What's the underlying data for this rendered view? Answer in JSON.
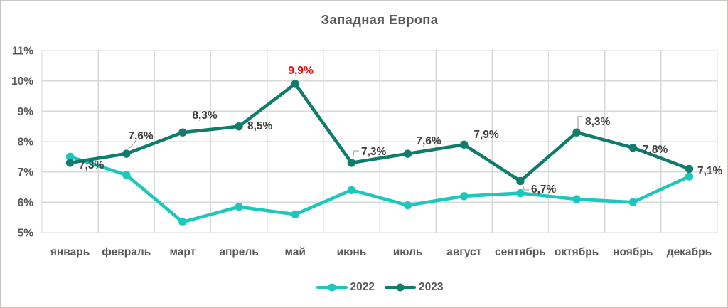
{
  "title": "Западная Европа",
  "chart_data": {
    "type": "line",
    "categories": [
      "январь",
      "февраль",
      "март",
      "апрель",
      "май",
      "июнь",
      "июль",
      "август",
      "сентябрь",
      "октябрь",
      "ноябрь",
      "декабрь"
    ],
    "series": [
      {
        "name": "2022",
        "color": "#1ec7bb",
        "values": [
          7.5,
          6.9,
          5.35,
          5.85,
          5.6,
          6.4,
          5.9,
          6.2,
          6.3,
          6.1,
          6.0,
          6.85
        ],
        "data_labels": []
      },
      {
        "name": "2023",
        "color": "#0e7d6c",
        "values": [
          7.3,
          7.6,
          8.3,
          8.5,
          9.9,
          7.3,
          7.6,
          7.9,
          6.7,
          8.3,
          7.8,
          7.1
        ],
        "data_labels": [
          "7,3%",
          "7,6%",
          "8,3%",
          "8,5%",
          "9,9%",
          "7,3%",
          "7,6%",
          "7,9%",
          "6,7%",
          "8,3%",
          "7,8%",
          "7,1%"
        ]
      }
    ],
    "ylim": [
      5,
      11
    ],
    "y_tick_labels": [
      "11%",
      "10%",
      "9%",
      "8%",
      "7%",
      "6%",
      "5%"
    ],
    "grid": true,
    "legend_position": "bottom",
    "highlight": {
      "series": "2023",
      "index": 4,
      "color": "#ff0000"
    },
    "colors": {
      "data_label": "#404040",
      "axis_text": "#595959",
      "gridline": "#d9d9d9",
      "leader_line": "#a6a6a6"
    }
  }
}
